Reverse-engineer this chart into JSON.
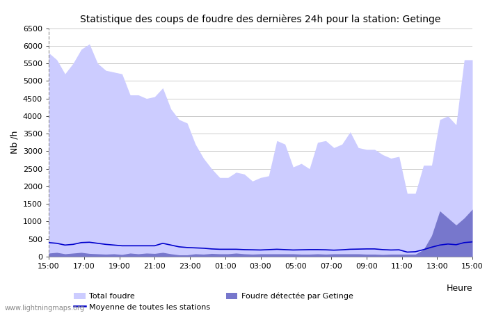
{
  "title": "Statistique des coups de foudre des dernières 24h pour la station: Getinge",
  "xlabel": "Heure",
  "ylabel": "Nb /h",
  "watermark": "www.lightningmaps.org",
  "legend": {
    "total_foudre": "Total foudre",
    "moyenne": "Moyenne de toutes les stations",
    "getinge": "Foudre détectée par Getinge"
  },
  "ylim": [
    0,
    6500
  ],
  "yticks": [
    0,
    500,
    1000,
    1500,
    2000,
    2500,
    3000,
    3500,
    4000,
    4500,
    5000,
    5500,
    6000,
    6500
  ],
  "xtick_labels": [
    "15:00",
    "17:00",
    "19:00",
    "21:00",
    "23:00",
    "01:00",
    "03:00",
    "05:00",
    "07:00",
    "09:00",
    "11:00",
    "13:00",
    "15:00"
  ],
  "colors": {
    "total_fill": "#ccccff",
    "getinge_fill": "#7777cc",
    "moyenne_line": "#0000cc",
    "background": "#ffffff",
    "grid": "#cccccc"
  },
  "total_foudre": [
    5800,
    5600,
    5200,
    5500,
    5900,
    6050,
    5500,
    5300,
    5250,
    5200,
    4600,
    4600,
    4500,
    4550,
    4800,
    4200,
    3900,
    3800,
    3200,
    2800,
    2500,
    2250,
    2250,
    2400,
    2350,
    2150,
    2250,
    2300,
    3300,
    3200,
    2550,
    2650,
    2500,
    3250,
    3300,
    3100,
    3200,
    3550,
    3100,
    3050,
    3050,
    2900,
    2800,
    2850,
    1800,
    1800,
    2600,
    2600,
    3900,
    4000,
    3750,
    5600,
    5600
  ],
  "getinge_foudre": [
    100,
    120,
    80,
    100,
    120,
    90,
    80,
    70,
    80,
    60,
    100,
    80,
    100,
    90,
    120,
    80,
    50,
    50,
    80,
    70,
    90,
    80,
    80,
    100,
    80,
    70,
    80,
    80,
    80,
    80,
    80,
    70,
    70,
    80,
    70,
    80,
    80,
    80,
    80,
    70,
    70,
    60,
    70,
    70,
    70,
    70,
    200,
    600,
    1300,
    1100,
    900,
    1100,
    1350
  ],
  "moyenne": [
    400,
    380,
    330,
    350,
    400,
    410,
    380,
    350,
    330,
    310,
    310,
    310,
    310,
    310,
    380,
    330,
    280,
    260,
    250,
    240,
    220,
    210,
    210,
    210,
    200,
    195,
    190,
    200,
    210,
    200,
    190,
    195,
    200,
    200,
    195,
    185,
    195,
    210,
    215,
    220,
    220,
    200,
    190,
    195,
    130,
    140,
    200,
    270,
    330,
    360,
    340,
    400,
    420
  ],
  "n_points": 53
}
